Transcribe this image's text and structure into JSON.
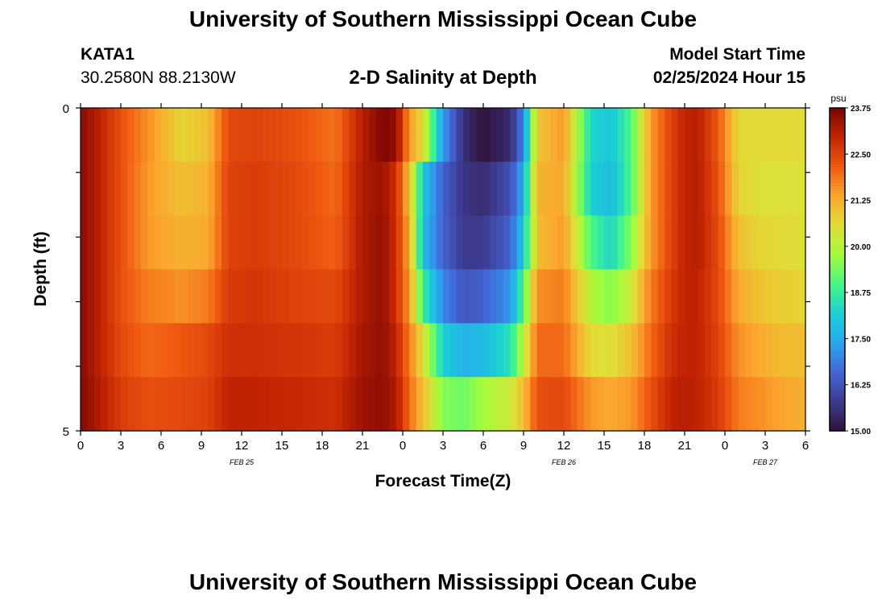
{
  "header": {
    "title": "University of Southern Mississippi Ocean Cube",
    "station": "KATA1",
    "coords": "30.2580N  88.2130W",
    "subtitle": "2-D Salinity at Depth",
    "model_label": "Model Start Time",
    "model_time": "02/25/2024 Hour 15"
  },
  "footer": {
    "title": "University of Southern Mississippi Ocean Cube"
  },
  "chart_data": {
    "type": "heatmap",
    "title": "2-D Salinity at Depth",
    "xlabel": "Forecast Time(Z)",
    "ylabel": "Depth (ft)",
    "x_hours_from_start": [
      0,
      54
    ],
    "x_tick_labels": [
      "0",
      "3",
      "6",
      "9",
      "12",
      "15",
      "18",
      "21",
      "0",
      "3",
      "6",
      "9",
      "12",
      "15",
      "18",
      "21",
      "0",
      "3",
      "6"
    ],
    "date_labels": [
      {
        "text": "FEB 25",
        "hour": 12
      },
      {
        "text": "FEB 26",
        "hour": 36
      },
      {
        "text": "FEB 27",
        "hour": 51
      }
    ],
    "y_tick_labels": [
      "0",
      "5"
    ],
    "ylim": [
      0,
      5
    ],
    "depth_levels": [
      0,
      1,
      2,
      3,
      4,
      5
    ],
    "colorbar": {
      "unit": "psu",
      "min": 15.0,
      "max": 23.75,
      "tick_labels": [
        "23.75",
        "22.50",
        "21.25",
        "20.00",
        "18.75",
        "17.50",
        "16.25",
        "15.00"
      ],
      "colors": [
        "#30123b",
        "#3d3a8e",
        "#4466d8",
        "#28a7ef",
        "#1bcfd4",
        "#46f884",
        "#a4fc3c",
        "#e1dd37",
        "#fba62e",
        "#ef5911",
        "#c42503",
        "#7a0403"
      ]
    },
    "salinity_psu": {
      "hours": [
        0,
        0.5,
        1.5,
        3,
        5,
        7.5,
        9.5,
        11,
        13,
        16,
        19,
        21,
        22.5,
        23.5,
        24.5,
        25.5,
        27,
        28.5,
        30,
        32,
        33,
        34,
        36,
        38,
        39.5,
        41,
        42.5,
        44,
        45,
        46,
        47.5,
        49,
        50.5,
        52,
        54
      ],
      "rows": [
        [
          23.6,
          23.4,
          23.0,
          22.3,
          21.6,
          20.7,
          21.0,
          22.4,
          22.5,
          22.3,
          21.9,
          23.1,
          23.7,
          23.5,
          21.5,
          20.5,
          17.3,
          15.6,
          15.0,
          15.5,
          17.0,
          20.9,
          21.5,
          18.3,
          18.0,
          19.0,
          21.5,
          22.5,
          23.0,
          23.1,
          22.2,
          20.6,
          20.6,
          20.6,
          20.6
        ],
        [
          23.6,
          23.4,
          23.0,
          22.3,
          21.5,
          21.0,
          21.2,
          22.5,
          22.6,
          22.4,
          22.0,
          23.2,
          23.4,
          22.8,
          21.0,
          18.0,
          16.5,
          15.7,
          15.5,
          16.2,
          17.5,
          21.2,
          21.3,
          18.2,
          17.8,
          19.0,
          21.5,
          22.5,
          23.0,
          23.1,
          22.3,
          20.7,
          20.5,
          20.5,
          20.5
        ],
        [
          23.6,
          23.4,
          23.0,
          22.3,
          21.5,
          21.2,
          21.3,
          22.5,
          22.6,
          22.4,
          22.1,
          23.2,
          23.5,
          22.8,
          21.3,
          17.8,
          16.5,
          15.8,
          15.8,
          16.5,
          18.0,
          21.0,
          21.5,
          19.0,
          18.3,
          19.5,
          21.5,
          22.5,
          23.0,
          23.1,
          22.4,
          21.0,
          20.7,
          20.6,
          20.5
        ],
        [
          23.6,
          23.4,
          23.0,
          22.3,
          21.8,
          21.6,
          21.8,
          22.6,
          22.7,
          22.5,
          22.4,
          23.2,
          23.5,
          22.8,
          21.5,
          18.8,
          17.0,
          16.3,
          16.5,
          17.2,
          19.0,
          21.6,
          21.8,
          20.0,
          19.5,
          20.3,
          21.8,
          22.6,
          23.0,
          23.0,
          22.4,
          21.3,
          21.0,
          20.8,
          20.7
        ],
        [
          23.6,
          23.4,
          23.0,
          22.4,
          22.0,
          22.2,
          22.4,
          22.8,
          22.8,
          22.7,
          22.6,
          23.3,
          23.5,
          23.0,
          21.8,
          20.5,
          18.2,
          17.6,
          17.8,
          18.5,
          20.0,
          22.0,
          22.0,
          20.6,
          20.5,
          21.0,
          22.0,
          22.8,
          23.0,
          23.0,
          22.5,
          21.6,
          21.3,
          21.1,
          21.0
        ],
        [
          23.6,
          23.5,
          23.1,
          22.6,
          22.3,
          22.4,
          22.5,
          23.0,
          23.0,
          22.9,
          22.8,
          23.4,
          23.5,
          23.2,
          22.0,
          21.0,
          19.5,
          19.3,
          19.8,
          20.3,
          21.0,
          22.3,
          22.4,
          21.5,
          21.3,
          21.5,
          22.3,
          23.0,
          23.1,
          23.0,
          22.6,
          21.8,
          21.6,
          21.4,
          21.2
        ]
      ]
    }
  }
}
